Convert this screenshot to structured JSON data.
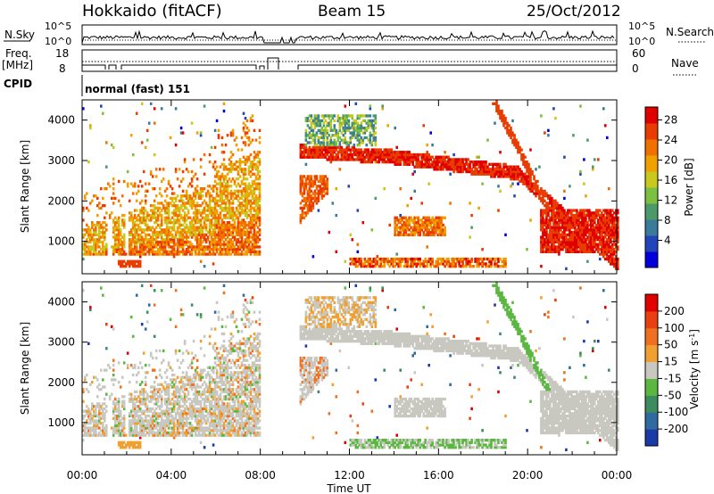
{
  "header": {
    "station": "Hokkaido (fitACF)",
    "beam": "Beam 15",
    "date": "25/Oct/2012",
    "cpid_label": "CPID",
    "cpid_value": "normal (fast) 151"
  },
  "status_panels": {
    "nsky": {
      "label": "N.Sky",
      "ticks": [
        "10^5",
        "10^0"
      ]
    },
    "nsearch": {
      "label": "N.Search",
      "ticks": [
        "10^5",
        "10^0"
      ]
    },
    "freq": {
      "label_line1": "Freq.",
      "label_line2": "[MHz]",
      "ticks": [
        "18",
        "8"
      ]
    },
    "nave": {
      "label": "Nave",
      "ticks": [
        "60",
        "0"
      ]
    }
  },
  "chart_data": [
    {
      "type": "heatmap",
      "name": "power",
      "ylabel": "Slant Range [km]",
      "yticks": [
        "4000",
        "3000",
        "2000",
        "1000"
      ],
      "ylim": [
        200,
        4500
      ],
      "xlim": [
        0,
        24
      ],
      "colorbar": {
        "label": "Power [dB]",
        "ticks": [
          "28",
          "24",
          "20",
          "16",
          "12",
          "8",
          "4"
        ],
        "colors": [
          "#0000dd",
          "#2244bb",
          "#3a7a9a",
          "#4c9a6a",
          "#7cc040",
          "#c8c81e",
          "#f0a000",
          "#f07000",
          "#e83c00",
          "#e00000"
        ]
      }
    },
    {
      "type": "heatmap",
      "name": "velocity",
      "ylabel": "Slant Range [km]",
      "yticks": [
        "4000",
        "3000",
        "2000",
        "1000"
      ],
      "ylim": [
        200,
        4500
      ],
      "xlim": [
        0,
        24
      ],
      "xticks": [
        "00:00",
        "04:00",
        "08:00",
        "12:00",
        "16:00",
        "20:00",
        "00:00"
      ],
      "xlabel": "Time UT",
      "colorbar": {
        "label": "Velocity [m s^-1]",
        "ticks": [
          "200",
          "100",
          "50",
          "15",
          "-15",
          "-50",
          "-100",
          "-200"
        ],
        "colors": [
          "#1a3aa8",
          "#2f6aa0",
          "#3d8c60",
          "#5ab840",
          "#c8c8c0",
          "#f0a030",
          "#f07020",
          "#e84010",
          "#e00000"
        ]
      }
    }
  ]
}
